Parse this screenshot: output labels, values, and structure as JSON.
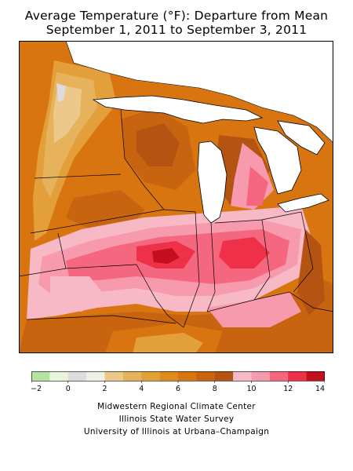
{
  "title": {
    "line1": "Average Temperature (°F): Departure from Mean",
    "line2": "September 1, 2011 to September 3, 2011"
  },
  "legend": {
    "ticks": [
      "−2",
      "0",
      "2",
      "4",
      "6",
      "8",
      "10",
      "12",
      "14"
    ],
    "bins": [
      {
        "min": -2,
        "max": -1,
        "color": "#b7e3a0"
      },
      {
        "min": -1,
        "max": 0,
        "color": "#e8f4dc"
      },
      {
        "min": 0,
        "max": 1,
        "color": "#dcdcdc"
      },
      {
        "min": 1,
        "max": 2,
        "color": "#efefe4"
      },
      {
        "min": 2,
        "max": 3,
        "color": "#ecc98a"
      },
      {
        "min": 3,
        "max": 4,
        "color": "#e6b25c"
      },
      {
        "min": 4,
        "max": 5,
        "color": "#e3a03a"
      },
      {
        "min": 5,
        "max": 6,
        "color": "#de8a1d"
      },
      {
        "min": 6,
        "max": 7,
        "color": "#d97510"
      },
      {
        "min": 7,
        "max": 8,
        "color": "#c86410"
      },
      {
        "min": 8,
        "max": 9,
        "color": "#b55312"
      },
      {
        "min": 9,
        "max": 10,
        "color": "#f7b9c6"
      },
      {
        "min": 10,
        "max": 11,
        "color": "#f79aad"
      },
      {
        "min": 11,
        "max": 12,
        "color": "#f5677f"
      },
      {
        "min": 12,
        "max": 13,
        "color": "#ee3048"
      },
      {
        "min": 13,
        "max": 14,
        "color": "#c4101e"
      }
    ]
  },
  "colors": {
    "water": "#ffffff",
    "border": "#000000"
  },
  "credits": {
    "line1": "Midwestern Regional Climate Center",
    "line2": "Illinois State Water Survey",
    "line3": "University of Illinois at Urbana–Champaign"
  }
}
